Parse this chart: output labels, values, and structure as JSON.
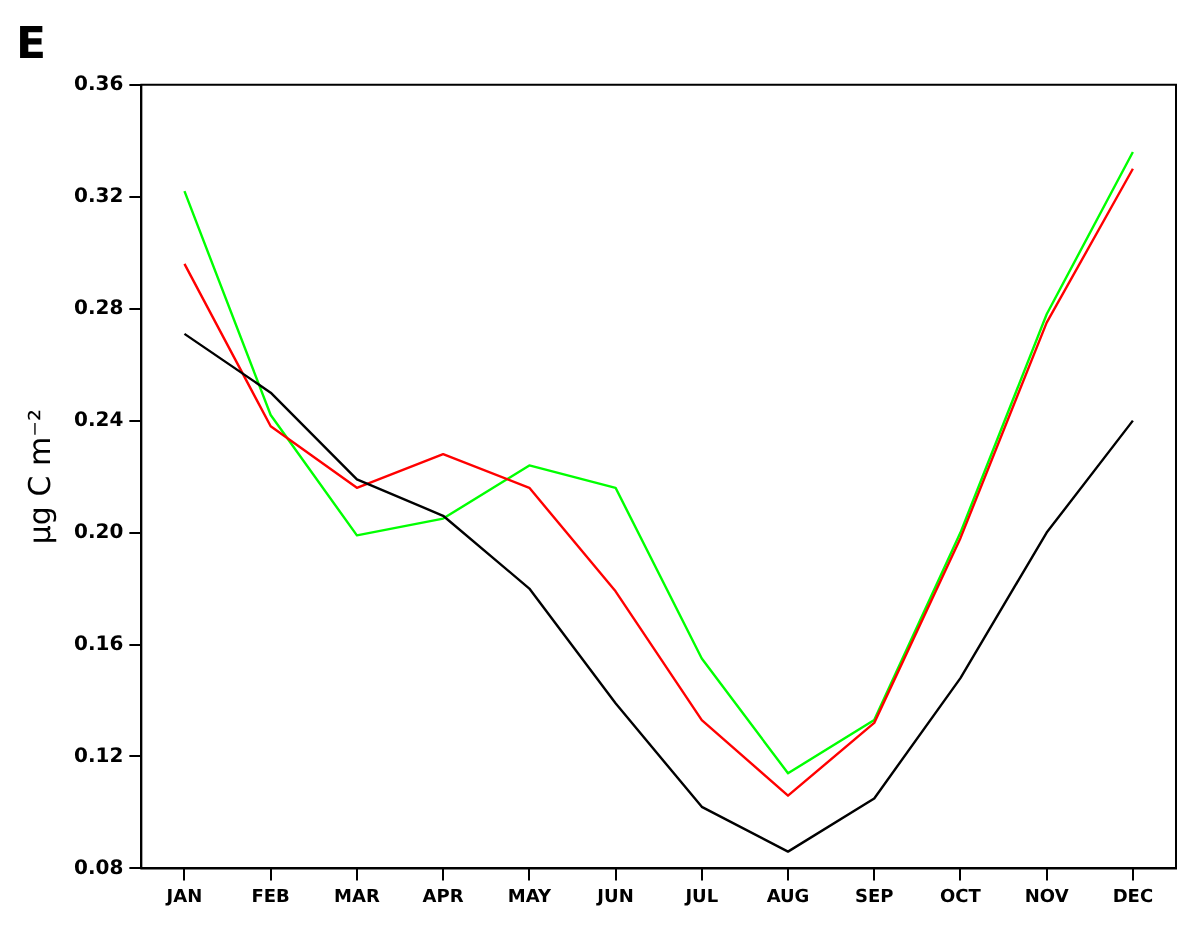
{
  "chart_data": {
    "type": "line",
    "title": "E",
    "ylabel": "µg C m⁻²",
    "categories": [
      "JAN",
      "FEB",
      "MAR",
      "APR",
      "MAY",
      "JUN",
      "JUL",
      "AUG",
      "SEP",
      "OCT",
      "NOV",
      "DEC"
    ],
    "series": [
      {
        "color": "#000000",
        "values": [
          0.271,
          0.25,
          0.219,
          0.206,
          0.18,
          0.139,
          0.102,
          0.086,
          0.105,
          0.148,
          0.2,
          0.24
        ]
      },
      {
        "color": "#ff0000",
        "values": [
          0.296,
          0.238,
          0.216,
          0.228,
          0.216,
          0.179,
          0.133,
          0.106,
          0.132,
          0.198,
          0.275,
          0.33
        ]
      },
      {
        "color": "#00ff00",
        "values": [
          0.322,
          0.242,
          0.199,
          0.205,
          0.224,
          0.216,
          0.155,
          0.114,
          0.133,
          0.2,
          0.278,
          0.336
        ]
      }
    ],
    "ylim": [
      0.08,
      0.36
    ],
    "yticks": [
      {
        "value": 0.08,
        "label": "0.08"
      },
      {
        "value": 0.12,
        "label": "0.12"
      },
      {
        "value": 0.16,
        "label": "0.16"
      },
      {
        "value": 0.2,
        "label": "0.20"
      },
      {
        "value": 0.24,
        "label": "0.24"
      },
      {
        "value": 0.28,
        "label": "0.28"
      },
      {
        "value": 0.32,
        "label": "0.32"
      },
      {
        "value": 0.36,
        "label": "0.36"
      }
    ],
    "grid": false,
    "legend": false,
    "marker": "none",
    "line_style": "solid"
  }
}
